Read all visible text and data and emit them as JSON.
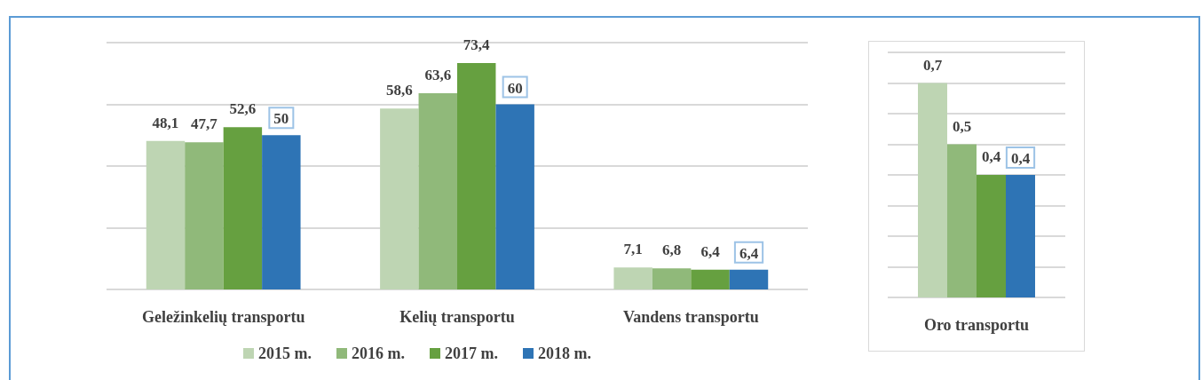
{
  "chart_data": [
    {
      "type": "bar",
      "categories": [
        "Geležinkelių transportu",
        "Kelių transportu",
        "Vandens transportu"
      ],
      "series": [
        {
          "name": "2015 m.",
          "color": "#bed5b3",
          "values": [
            48.1,
            58.6,
            7.1
          ],
          "value_labels": [
            "48,1",
            "58,6",
            "7,1"
          ]
        },
        {
          "name": "2016 m.",
          "color": "#90b97a",
          "values": [
            47.7,
            63.6,
            6.8
          ],
          "value_labels": [
            "47,7",
            "63,6",
            "6,8"
          ]
        },
        {
          "name": "2017 m.",
          "color": "#66a040",
          "values": [
            52.6,
            73.4,
            6.4
          ],
          "value_labels": [
            "52,6",
            "73,4",
            "6,4"
          ]
        },
        {
          "name": "2018 m.",
          "color": "#2e74b5",
          "values": [
            50,
            60,
            6.4
          ],
          "value_labels": [
            "50",
            "60",
            "6,4"
          ]
        }
      ],
      "ylim": [
        0,
        80
      ],
      "yticks": [
        {
          "value": 0,
          "label": null
        },
        {
          "value": 20,
          "label": null
        },
        {
          "value": 40,
          "label": null
        },
        {
          "value": 60,
          "label": null
        },
        {
          "value": 80,
          "label": null
        }
      ],
      "grid": "y",
      "tick_labels": "x",
      "legend": "bottom"
    },
    {
      "type": "bar",
      "categories": [
        "Oro transportu"
      ],
      "series": [
        {
          "color": "#bed5b3",
          "values": [
            0.7
          ],
          "value_labels": [
            "0,7"
          ]
        },
        {
          "color": "#90b97a",
          "values": [
            0.5
          ],
          "value_labels": [
            "0,5"
          ]
        },
        {
          "color": "#66a040",
          "values": [
            0.4
          ],
          "value_labels": [
            "0,4"
          ]
        },
        {
          "color": "#2e74b5",
          "values": [
            0.4
          ],
          "value_labels": [
            "0,4"
          ]
        }
      ],
      "ylim": [
        0,
        0.8
      ],
      "yticks": [
        {
          "value": 0,
          "label": null
        },
        {
          "value": 0.1,
          "label": null
        },
        {
          "value": 0.2,
          "label": null
        },
        {
          "value": 0.3,
          "label": null
        },
        {
          "value": 0.4,
          "label": null
        },
        {
          "value": 0.5,
          "label": null
        },
        {
          "value": 0.6,
          "label": null
        },
        {
          "value": 0.7,
          "label": null
        },
        {
          "value": 0.8,
          "label": null
        }
      ],
      "grid": "y",
      "tick_labels": "x",
      "legend": false
    }
  ]
}
